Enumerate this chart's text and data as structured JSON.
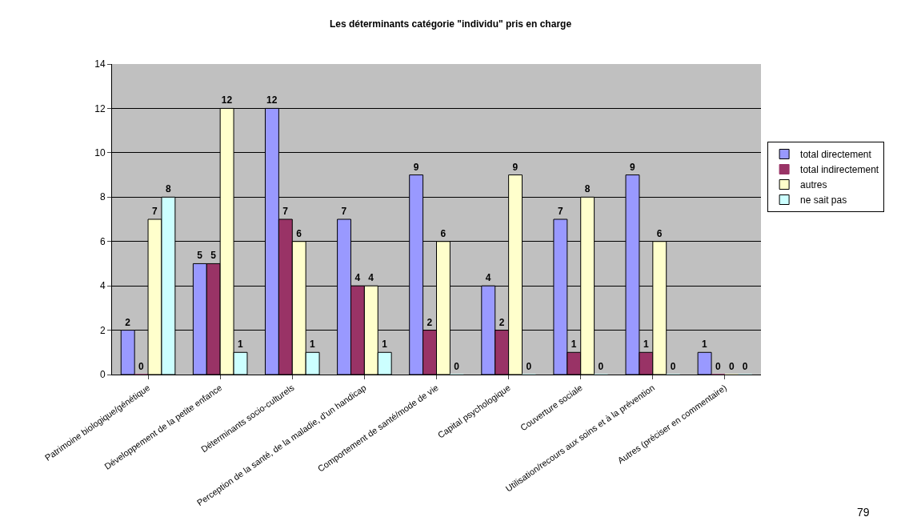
{
  "chart_data": {
    "type": "bar",
    "title": "Les déterminants catégorie \"individu\" pris en charge",
    "categories": [
      "Patrimoine biologique/génétique",
      "Développement de la petite enfance",
      "Déterminants socio-culturels",
      "Perception de la santé, de la maladie, d'un handicap",
      "Comportement de santé/mode de vie",
      "Capital psychologique",
      "Couverture sociale",
      "Utilisation/recours aux soins et à la prévention",
      "Autres (préciser en commentaire)"
    ],
    "series": [
      {
        "name": "total directement",
        "color": "#9999ff",
        "values": [
          2,
          5,
          12,
          7,
          9,
          4,
          7,
          9,
          1
        ]
      },
      {
        "name": "total indirectement",
        "color": "#993366",
        "values": [
          0,
          5,
          7,
          4,
          2,
          2,
          1,
          1,
          0
        ]
      },
      {
        "name": "autres",
        "color": "#ffffcc",
        "values": [
          7,
          12,
          6,
          4,
          6,
          9,
          8,
          6,
          0
        ]
      },
      {
        "name": "ne sait pas",
        "color": "#ccffff",
        "values": [
          8,
          1,
          1,
          1,
          0,
          0,
          0,
          0,
          0
        ]
      }
    ],
    "ylim": [
      0,
      14
    ],
    "yticks": [
      0,
      2,
      4,
      6,
      8,
      10,
      12,
      14
    ],
    "grid": "y",
    "legend": "right",
    "data_labels": true,
    "annotations": [
      "79"
    ]
  }
}
